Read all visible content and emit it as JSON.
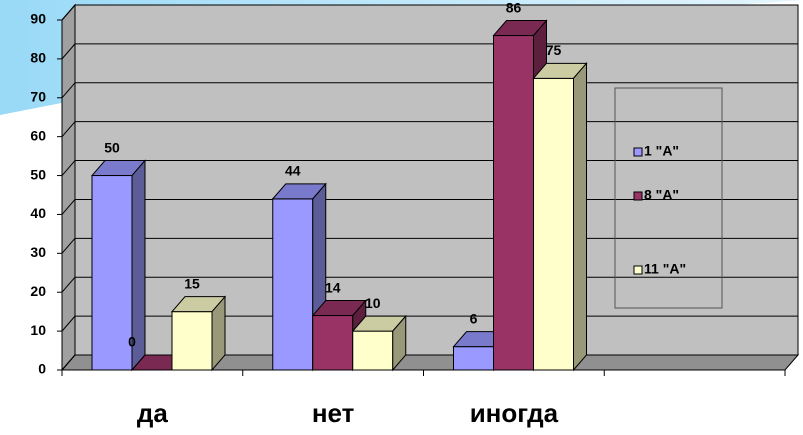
{
  "chart_data": {
    "type": "bar3d",
    "categories": [
      "да",
      "нет",
      "иногда"
    ],
    "series": [
      {
        "name": "1 \"А\"",
        "color": "#9999ff",
        "values": [
          50,
          44,
          6
        ]
      },
      {
        "name": "8 \"А\"",
        "color": "#993366",
        "values": [
          0,
          14,
          86
        ]
      },
      {
        "name": "11 \"А\"",
        "color": "#ffffcc",
        "values": [
          15,
          10,
          75
        ]
      }
    ],
    "ylim": [
      0,
      90
    ],
    "yticks": [
      0,
      10,
      20,
      30,
      40,
      50,
      60,
      70,
      80,
      90
    ],
    "grid": true,
    "legend": "right"
  }
}
